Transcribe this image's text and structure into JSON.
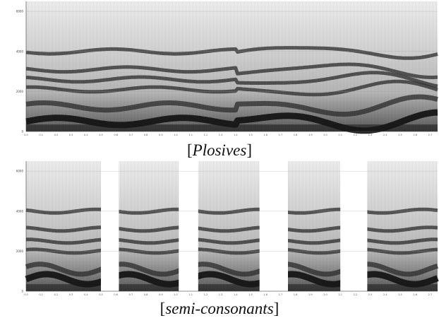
{
  "panels": [
    {
      "caption": "Plosives",
      "y_ticks": [
        "0",
        "2000",
        "4000",
        "6000"
      ],
      "x_ticks": [
        "0.0",
        "0.1",
        "0.2",
        "0.3",
        "0.4",
        "0.5",
        "0.6",
        "0.7",
        "0.8",
        "0.9",
        "1.0",
        "1.1",
        "1.2",
        "1.3",
        "1.4",
        "1.5",
        "1.6",
        "1.7",
        "1.8",
        "1.9",
        "2.0",
        "2.1",
        "2.2",
        "2.3",
        "2.4",
        "2.5",
        "2.6",
        "2.7"
      ],
      "y_max": 6500,
      "x_max": 2.75,
      "formant_base": [
        500,
        1250,
        2100,
        2600,
        3100,
        4000
      ],
      "gaps": []
    },
    {
      "caption": "semi-consonants",
      "y_ticks": [
        "0",
        "2000",
        "4000",
        "6000"
      ],
      "x_ticks": [
        "0.0",
        "0.1",
        "0.2",
        "0.3",
        "0.4",
        "0.5",
        "0.6",
        "0.7",
        "0.8",
        "0.9",
        "1.0",
        "1.1",
        "1.2",
        "1.3",
        "1.4",
        "1.5",
        "1.6",
        "1.7",
        "1.8",
        "1.9",
        "2.0",
        "2.1",
        "2.2",
        "2.3",
        "2.4",
        "2.5",
        "2.6",
        "2.7"
      ],
      "y_max": 6500,
      "x_max": 2.75,
      "formant_base": [
        600,
        1100,
        2000,
        2500,
        3100,
        4000
      ],
      "gaps": [
        [
          0.5,
          0.62
        ],
        [
          1.02,
          1.15
        ],
        [
          1.56,
          1.75
        ],
        [
          2.1,
          2.28
        ]
      ]
    }
  ]
}
